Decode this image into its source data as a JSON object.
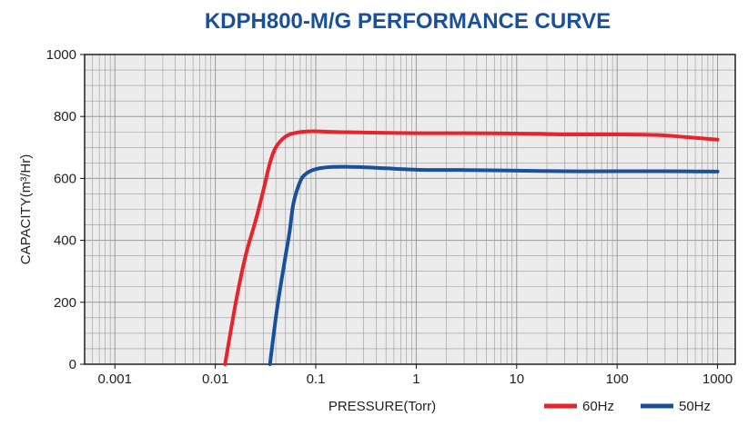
{
  "chart_data": {
    "type": "line",
    "title": "KDPH800-M/G  PERFORMANCE CURVE",
    "xlabel": "PRESSURE(Torr)",
    "ylabel": "CAPACITY(m³/Hr)",
    "x_scale": "log",
    "xlim": [
      0.0005,
      1500
    ],
    "ylim": [
      0,
      1000
    ],
    "x_ticks": [
      {
        "value": 0.001,
        "label": "0.001"
      },
      {
        "value": 0.01,
        "label": "0.01"
      },
      {
        "value": 0.1,
        "label": "0.1"
      },
      {
        "value": 1,
        "label": "1"
      },
      {
        "value": 10,
        "label": "10"
      },
      {
        "value": 100,
        "label": "100"
      },
      {
        "value": 1000,
        "label": "1000"
      }
    ],
    "y_ticks": [
      {
        "value": 0,
        "label": "0"
      },
      {
        "value": 200,
        "label": "200"
      },
      {
        "value": 400,
        "label": "400"
      },
      {
        "value": 600,
        "label": "600"
      },
      {
        "value": 800,
        "label": "800"
      },
      {
        "value": 1000,
        "label": "1000"
      }
    ],
    "grid": true,
    "legend_position": "bottom-right",
    "series": [
      {
        "name": "60Hz",
        "color": "#e8232b",
        "points": [
          [
            0.0125,
            0
          ],
          [
            0.016,
            200
          ],
          [
            0.02,
            350
          ],
          [
            0.025,
            460
          ],
          [
            0.03,
            560
          ],
          [
            0.035,
            650
          ],
          [
            0.04,
            700
          ],
          [
            0.05,
            735
          ],
          [
            0.065,
            748
          ],
          [
            0.09,
            752
          ],
          [
            0.15,
            750
          ],
          [
            0.3,
            748
          ],
          [
            1,
            746
          ],
          [
            3,
            746
          ],
          [
            10,
            745
          ],
          [
            30,
            742
          ],
          [
            100,
            742
          ],
          [
            250,
            740
          ],
          [
            500,
            733
          ],
          [
            1000,
            725
          ]
        ]
      },
      {
        "name": "50Hz",
        "color": "#1a4f9b",
        "points": [
          [
            0.035,
            0
          ],
          [
            0.04,
            150
          ],
          [
            0.045,
            260
          ],
          [
            0.05,
            350
          ],
          [
            0.055,
            430
          ],
          [
            0.06,
            520
          ],
          [
            0.07,
            590
          ],
          [
            0.08,
            615
          ],
          [
            0.1,
            630
          ],
          [
            0.15,
            637
          ],
          [
            0.3,
            636
          ],
          [
            1,
            628
          ],
          [
            3,
            627
          ],
          [
            10,
            625
          ],
          [
            30,
            623
          ],
          [
            100,
            623
          ],
          [
            300,
            623
          ],
          [
            1000,
            622
          ]
        ]
      }
    ],
    "title_color": "#1a4f9b",
    "plot_background": "#ececec",
    "grid_color": "#9a9a9a"
  }
}
